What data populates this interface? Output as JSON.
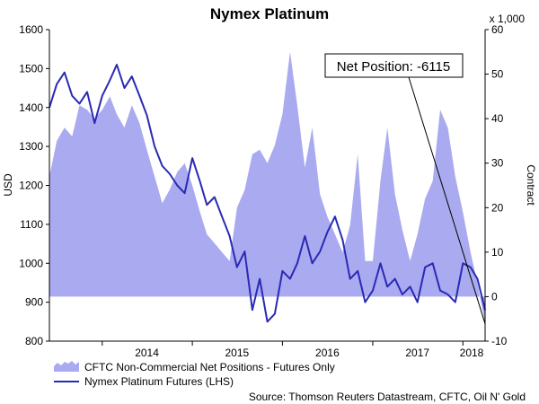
{
  "chart_data": {
    "type": "area+line",
    "title": "Nymex Platinum",
    "ylabel_left": "USD",
    "ylabel_right": "Contract",
    "right_unit": "x 1,000",
    "y_left_lim": [
      800,
      1600
    ],
    "y_left_ticks": [
      800,
      900,
      1000,
      1100,
      1200,
      1300,
      1400,
      1500,
      1600
    ],
    "y_right_lim": [
      -10,
      60
    ],
    "y_right_ticks": [
      -10,
      0,
      10,
      20,
      30,
      40,
      50,
      60
    ],
    "x_range": [
      "2013-06-01",
      "2018-04-01"
    ],
    "x_ticks": [
      "2014",
      "2015",
      "2016",
      "2017",
      "2018"
    ],
    "grid": false,
    "legend_placement": "bottom-left",
    "series": [
      {
        "name": "CFTC Non-Commercial Net Positions - Futures Only",
        "kind": "area",
        "axis": "right",
        "color": "#aaaaf0",
        "points": [
          [
            "2013-06-01",
            27
          ],
          [
            "2013-07-01",
            35
          ],
          [
            "2013-08-01",
            38
          ],
          [
            "2013-09-01",
            36
          ],
          [
            "2013-10-01",
            43
          ],
          [
            "2013-11-01",
            42
          ],
          [
            "2013-12-01",
            40
          ],
          [
            "2014-01-01",
            42
          ],
          [
            "2014-02-01",
            45
          ],
          [
            "2014-03-01",
            41
          ],
          [
            "2014-04-01",
            38
          ],
          [
            "2014-05-01",
            43
          ],
          [
            "2014-06-01",
            39
          ],
          [
            "2014-07-01",
            33
          ],
          [
            "2014-08-01",
            27
          ],
          [
            "2014-09-01",
            21
          ],
          [
            "2014-10-01",
            24
          ],
          [
            "2014-11-01",
            28
          ],
          [
            "2014-12-01",
            30
          ],
          [
            "2015-01-01",
            25
          ],
          [
            "2015-02-01",
            19
          ],
          [
            "2015-03-01",
            14
          ],
          [
            "2015-04-01",
            12
          ],
          [
            "2015-05-01",
            10
          ],
          [
            "2015-06-01",
            8
          ],
          [
            "2015-07-01",
            20
          ],
          [
            "2015-08-01",
            24
          ],
          [
            "2015-09-01",
            32
          ],
          [
            "2015-10-01",
            33
          ],
          [
            "2015-11-01",
            30
          ],
          [
            "2015-12-01",
            34
          ],
          [
            "2016-01-01",
            41
          ],
          [
            "2016-02-01",
            55
          ],
          [
            "2016-03-01",
            43
          ],
          [
            "2016-04-01",
            29
          ],
          [
            "2016-05-01",
            38
          ],
          [
            "2016-06-01",
            23
          ],
          [
            "2016-07-01",
            18
          ],
          [
            "2016-08-01",
            14
          ],
          [
            "2016-09-01",
            10
          ],
          [
            "2016-10-01",
            16
          ],
          [
            "2016-11-01",
            32
          ],
          [
            "2016-12-01",
            8
          ],
          [
            "2017-01-01",
            8
          ],
          [
            "2017-02-01",
            26
          ],
          [
            "2017-03-01",
            38
          ],
          [
            "2017-04-01",
            23
          ],
          [
            "2017-05-01",
            15
          ],
          [
            "2017-06-01",
            8
          ],
          [
            "2017-07-01",
            14
          ],
          [
            "2017-08-01",
            22
          ],
          [
            "2017-09-01",
            26
          ],
          [
            "2017-10-01",
            42
          ],
          [
            "2017-11-01",
            38
          ],
          [
            "2017-12-01",
            27
          ],
          [
            "2018-01-01",
            19
          ],
          [
            "2018-02-01",
            10
          ],
          [
            "2018-03-01",
            3
          ],
          [
            "2018-04-01",
            -6
          ]
        ]
      },
      {
        "name": "Nymex Platinum Futures (LHS)",
        "kind": "line",
        "axis": "left",
        "color": "#2a2ab4",
        "points": [
          [
            "2013-06-01",
            1400
          ],
          [
            "2013-07-01",
            1460
          ],
          [
            "2013-08-01",
            1490
          ],
          [
            "2013-09-01",
            1430
          ],
          [
            "2013-10-01",
            1410
          ],
          [
            "2013-11-01",
            1440
          ],
          [
            "2013-12-01",
            1360
          ],
          [
            "2014-01-01",
            1430
          ],
          [
            "2014-02-01",
            1470
          ],
          [
            "2014-03-01",
            1510
          ],
          [
            "2014-04-01",
            1450
          ],
          [
            "2014-05-01",
            1480
          ],
          [
            "2014-06-01",
            1430
          ],
          [
            "2014-07-01",
            1380
          ],
          [
            "2014-08-01",
            1300
          ],
          [
            "2014-09-01",
            1250
          ],
          [
            "2014-10-01",
            1230
          ],
          [
            "2014-11-01",
            1200
          ],
          [
            "2014-12-01",
            1180
          ],
          [
            "2015-01-01",
            1270
          ],
          [
            "2015-02-01",
            1210
          ],
          [
            "2015-03-01",
            1150
          ],
          [
            "2015-04-01",
            1170
          ],
          [
            "2015-05-01",
            1120
          ],
          [
            "2015-06-01",
            1070
          ],
          [
            "2015-07-01",
            990
          ],
          [
            "2015-08-01",
            1030
          ],
          [
            "2015-09-01",
            880
          ],
          [
            "2015-10-01",
            960
          ],
          [
            "2015-11-01",
            850
          ],
          [
            "2015-12-01",
            870
          ],
          [
            "2016-01-01",
            980
          ],
          [
            "2016-02-01",
            960
          ],
          [
            "2016-03-01",
            1000
          ],
          [
            "2016-04-01",
            1070
          ],
          [
            "2016-05-01",
            1000
          ],
          [
            "2016-06-01",
            1030
          ],
          [
            "2016-07-01",
            1080
          ],
          [
            "2016-08-01",
            1120
          ],
          [
            "2016-09-01",
            1060
          ],
          [
            "2016-10-01",
            960
          ],
          [
            "2016-11-01",
            980
          ],
          [
            "2016-12-01",
            900
          ],
          [
            "2017-01-01",
            930
          ],
          [
            "2017-02-01",
            1000
          ],
          [
            "2017-03-01",
            940
          ],
          [
            "2017-04-01",
            960
          ],
          [
            "2017-05-01",
            920
          ],
          [
            "2017-06-01",
            940
          ],
          [
            "2017-07-01",
            900
          ],
          [
            "2017-08-01",
            990
          ],
          [
            "2017-09-01",
            1000
          ],
          [
            "2017-10-01",
            930
          ],
          [
            "2017-11-01",
            920
          ],
          [
            "2017-12-01",
            900
          ],
          [
            "2018-01-01",
            1000
          ],
          [
            "2018-02-01",
            990
          ],
          [
            "2018-03-01",
            960
          ],
          [
            "2018-04-01",
            880
          ]
        ]
      }
    ],
    "annotation": {
      "text": "Net Position: -6115",
      "points_to": [
        "2018-04-01",
        -6.115
      ]
    },
    "source": "Source: Thomson Reuters Datastream, CFTC, Oil N' Gold"
  }
}
